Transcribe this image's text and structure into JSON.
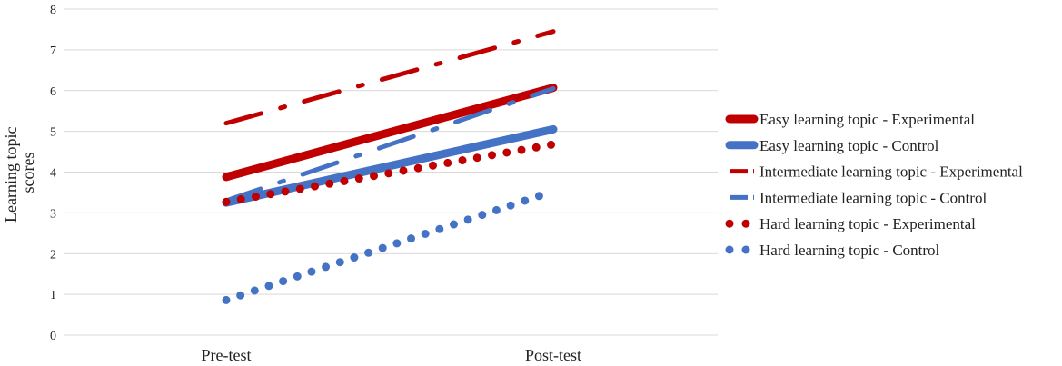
{
  "chart_data": {
    "type": "line",
    "categories": [
      "Pre-test",
      "Post-test"
    ],
    "ylabel_lines": [
      "Learning topic",
      "scores"
    ],
    "ylim": [
      0,
      8
    ],
    "yticks": [
      0,
      1,
      2,
      3,
      4,
      5,
      6,
      7,
      8
    ],
    "grid": true,
    "legend_position": "right",
    "series": [
      {
        "name": "Easy learning topic - Experimental",
        "values": [
          3.88,
          6.07
        ],
        "color": "#C00000",
        "style": "solid-thick"
      },
      {
        "name": "Easy learning topic - Control",
        "values": [
          3.25,
          5.05
        ],
        "color": "#4472C4",
        "style": "solid-thick"
      },
      {
        "name": "Intermediate learning topic - Experimental",
        "values": [
          5.2,
          7.45
        ],
        "color": "#C00000",
        "style": "dash-dot"
      },
      {
        "name": "Intermediate learning topic - Control",
        "values": [
          3.3,
          6.05
        ],
        "color": "#4472C4",
        "style": "dash-dot"
      },
      {
        "name": "Hard learning topic - Experimental",
        "values": [
          3.27,
          4.68
        ],
        "color": "#C00000",
        "style": "dots"
      },
      {
        "name": "Hard learning topic - Control",
        "values": [
          0.86,
          3.53
        ],
        "color": "#4472C4",
        "style": "dots"
      }
    ]
  }
}
